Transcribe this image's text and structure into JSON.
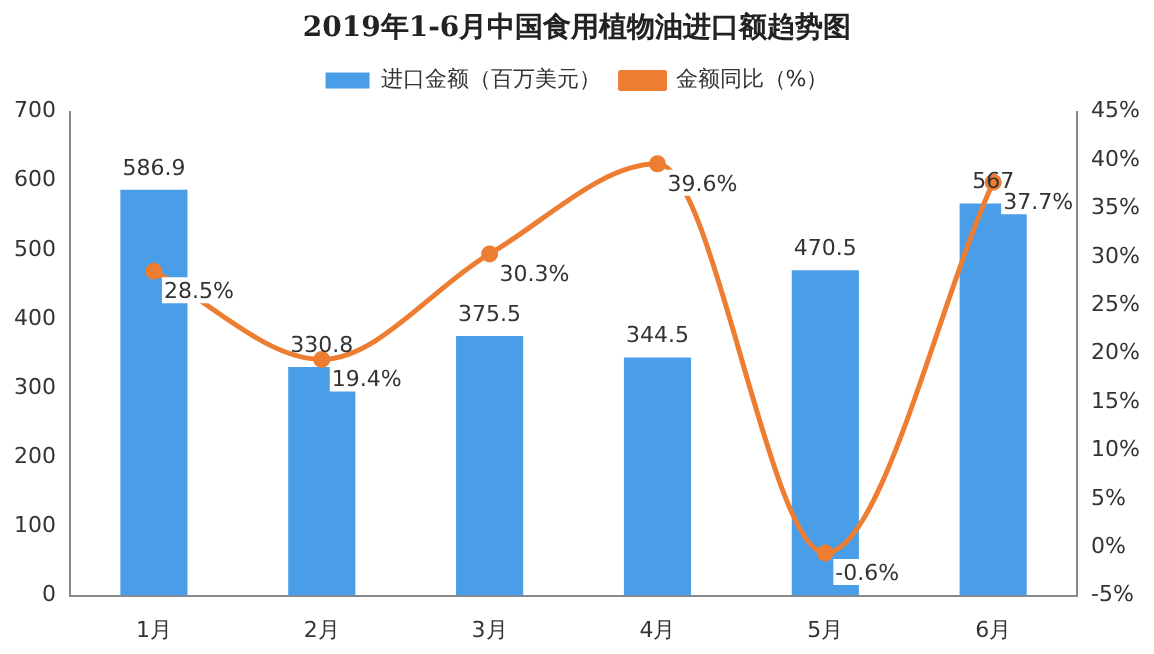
{
  "chart_data": {
    "type": "bar",
    "title": "2019年1-6月中国食用植物油进口额趋势图",
    "categories": [
      "1月",
      "2月",
      "3月",
      "4月",
      "5月",
      "6月"
    ],
    "series": [
      {
        "name": "进口金额（百万美元）",
        "color": "#4a9ee8",
        "values": [
          586.9,
          330.8,
          375.5,
          344.5,
          470.5,
          567
        ],
        "value_labels": [
          "586.9",
          "330.8",
          "375.5",
          "344.5",
          "470.5",
          "567"
        ]
      },
      {
        "name": "金额同比（%）",
        "type": "line",
        "axis": "y2",
        "color": "#ed7d31",
        "values": [
          28.5,
          19.4,
          30.3,
          39.6,
          -0.6,
          37.7
        ],
        "value_labels": [
          "28.5%",
          "19.4%",
          "30.3%",
          "39.6%",
          "-0.6%",
          "37.7%"
        ]
      }
    ],
    "ylim": [
      0,
      700
    ],
    "yticks": [
      0,
      100,
      200,
      300,
      400,
      500,
      600,
      700
    ],
    "y2lim": [
      -5,
      45
    ],
    "y2ticks": [
      {
        "value": -5,
        "label": "-5%"
      },
      {
        "value": 0,
        "label": "0%"
      },
      {
        "value": 5,
        "label": "5%"
      },
      {
        "value": 10,
        "label": "10%"
      },
      {
        "value": 15,
        "label": "15%"
      },
      {
        "value": 20,
        "label": "20%"
      },
      {
        "value": 25,
        "label": "25%"
      },
      {
        "value": 30,
        "label": "30%"
      },
      {
        "value": 35,
        "label": "35%"
      },
      {
        "value": 40,
        "label": "40%"
      },
      {
        "value": 45,
        "label": "45%"
      }
    ],
    "grid": false,
    "legend": "top",
    "marker": "circle"
  }
}
